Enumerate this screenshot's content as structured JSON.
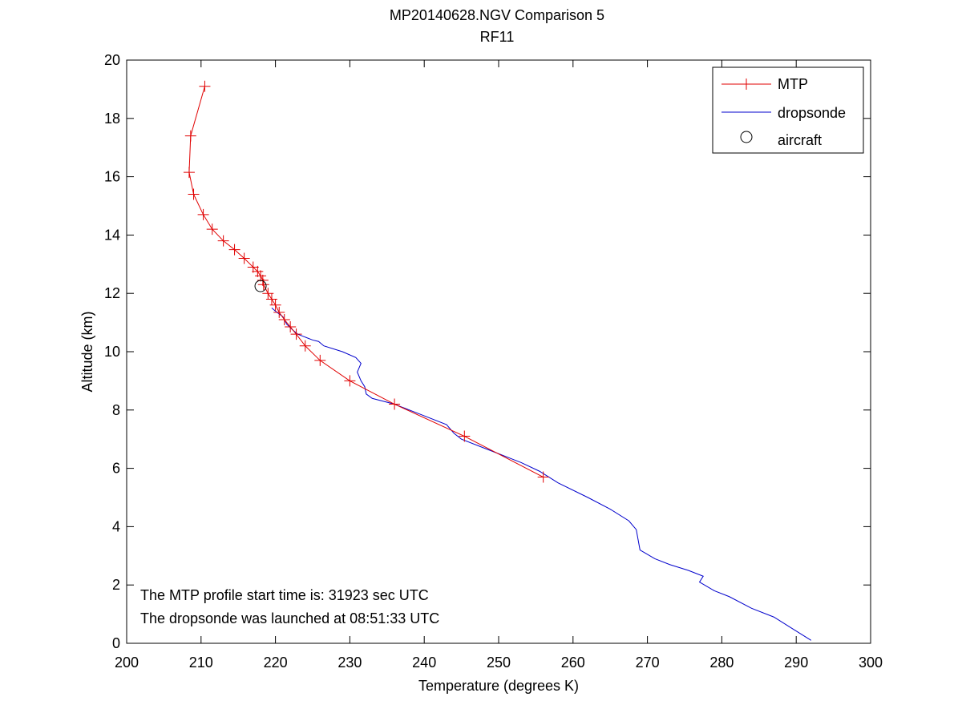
{
  "chart_data": {
    "type": "line",
    "title": "MP20140628.NGV Comparison 5",
    "subtitle": "RF11",
    "xlabel": "Temperature (degrees K)",
    "ylabel": "Altitude (km)",
    "xlim": [
      200,
      300
    ],
    "ylim": [
      0,
      20
    ],
    "xticks": [
      200,
      210,
      220,
      230,
      240,
      250,
      260,
      270,
      280,
      290,
      300
    ],
    "yticks": [
      0,
      2,
      4,
      6,
      8,
      10,
      12,
      14,
      16,
      18,
      20
    ],
    "grid": false,
    "legend_position": "top-right",
    "legend": [
      "MTP",
      "dropsonde",
      "aircraft"
    ],
    "colors": {
      "mtp": "#e00000",
      "dropsonde": "#0000cc",
      "aircraft": "#000000",
      "axes": "#000000"
    },
    "series": [
      {
        "name": "MTP",
        "marker": "plus",
        "x": [
          210.5,
          208.6,
          208.4,
          209.0,
          210.3,
          211.5,
          213.0,
          214.5,
          215.8,
          217.0,
          217.6,
          218.0,
          218.3,
          218.4,
          219.0,
          219.5,
          220.0,
          220.5,
          221.2,
          222.0,
          222.8,
          224.0,
          226.0,
          230.0,
          236.0,
          245.4,
          256.0
        ],
        "y": [
          19.1,
          17.4,
          16.15,
          15.4,
          14.7,
          14.2,
          13.8,
          13.5,
          13.2,
          12.9,
          12.75,
          12.6,
          12.45,
          12.3,
          12.0,
          11.8,
          11.6,
          11.35,
          11.1,
          10.85,
          10.6,
          10.2,
          9.7,
          9.0,
          8.2,
          7.1,
          5.7
        ]
      },
      {
        "name": "dropsonde",
        "x": [
          219.5,
          220.2,
          221.0,
          221.5,
          222.3,
          223.0,
          224.0,
          225.0,
          225.8,
          226.5,
          229.0,
          230.8,
          231.5,
          231.0,
          231.5,
          232.0,
          232.2,
          233.0,
          234.5,
          236.0,
          237.0,
          240.0,
          243.0,
          244.0,
          245.0,
          248.0,
          250.0,
          253.0,
          255.5,
          258.0,
          262.0,
          265.0,
          267.5,
          268.5,
          269.0,
          271.0,
          273.0,
          275.5,
          277.5,
          277.0,
          279.0,
          281.0,
          284.0,
          287.0,
          289.5,
          292.0
        ],
        "y": [
          11.5,
          11.35,
          11.2,
          10.95,
          10.75,
          10.6,
          10.5,
          10.4,
          10.35,
          10.2,
          10.0,
          9.8,
          9.6,
          9.3,
          9.0,
          8.8,
          8.55,
          8.4,
          8.3,
          8.2,
          8.1,
          7.8,
          7.5,
          7.2,
          7.0,
          6.7,
          6.5,
          6.2,
          5.9,
          5.5,
          5.0,
          4.6,
          4.2,
          3.9,
          3.2,
          2.9,
          2.7,
          2.5,
          2.3,
          2.1,
          1.8,
          1.6,
          1.2,
          0.9,
          0.5,
          0.1
        ]
      },
      {
        "name": "aircraft",
        "marker": "circle",
        "x": [
          218.0
        ],
        "y": [
          12.25
        ]
      }
    ],
    "annotations": [
      "The MTP profile start time is: 31923 sec UTC",
      "The dropsonde was launched at 08:51:33 UTC"
    ]
  }
}
